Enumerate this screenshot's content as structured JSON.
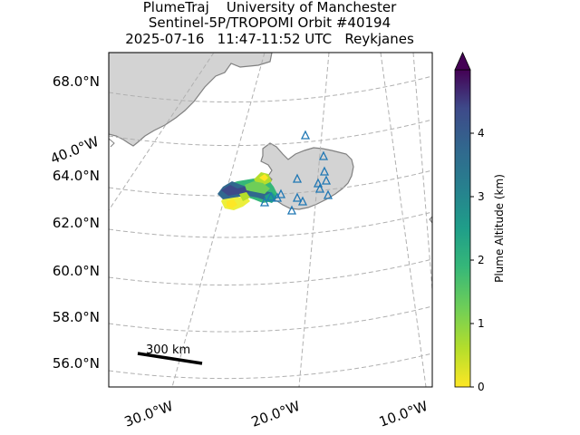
{
  "title": {
    "line1": "PlumeTraj    University of Manchester",
    "line2": "Sentinel-5P/TROPOMI Orbit #40194",
    "line3": "2025-07-16   11:47-11:52 UTC   Reykjanes"
  },
  "map": {
    "lat_labels": [
      "68.0°N",
      "64.0°N",
      "62.0°N",
      "60.0°N",
      "58.0°N",
      "56.0°N"
    ],
    "lon_labels": [
      "30.0°W",
      "20.0°W",
      "10.0°W"
    ],
    "oblique_lon_label": "40.0°W",
    "scale_bar_label": "300 km",
    "colors": {
      "land": "#d3d3d3",
      "coast": "#808080",
      "grid": "#b0b0b0",
      "volcano_marker": "#1f77b4"
    }
  },
  "colorbar": {
    "label": "Plume Altitude (km)",
    "ticks": [
      "0",
      "1",
      "2",
      "3",
      "4"
    ],
    "range": [
      0,
      5
    ],
    "colormap": "viridis_r",
    "extend": "max"
  }
}
